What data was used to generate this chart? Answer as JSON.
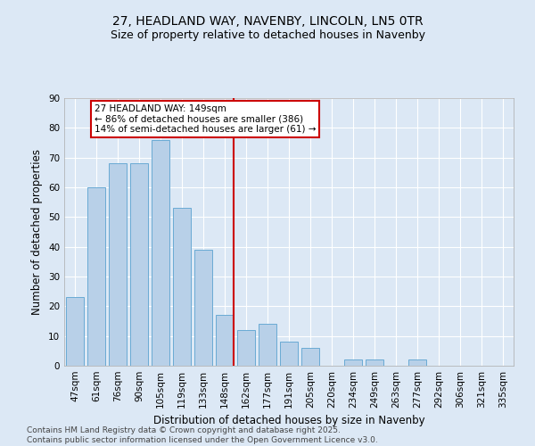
{
  "title": "27, HEADLAND WAY, NAVENBY, LINCOLN, LN5 0TR",
  "subtitle": "Size of property relative to detached houses in Navenby",
  "xlabel": "Distribution of detached houses by size in Navenby",
  "ylabel": "Number of detached properties",
  "categories": [
    "47sqm",
    "61sqm",
    "76sqm",
    "90sqm",
    "105sqm",
    "119sqm",
    "133sqm",
    "148sqm",
    "162sqm",
    "177sqm",
    "191sqm",
    "205sqm",
    "220sqm",
    "234sqm",
    "249sqm",
    "263sqm",
    "277sqm",
    "292sqm",
    "306sqm",
    "321sqm",
    "335sqm"
  ],
  "values": [
    23,
    60,
    68,
    68,
    76,
    53,
    39,
    17,
    12,
    14,
    8,
    6,
    0,
    2,
    2,
    0,
    2,
    0,
    0,
    0,
    0
  ],
  "bar_color": "#b8d0e8",
  "bar_edge_color": "#6aaad4",
  "reference_line_color": "#cc0000",
  "annotation_text": "27 HEADLAND WAY: 149sqm\n← 86% of detached houses are smaller (386)\n14% of semi-detached houses are larger (61) →",
  "annotation_box_color": "#cc0000",
  "annotation_fill": "#ffffff",
  "ylim": [
    0,
    90
  ],
  "yticks": [
    0,
    10,
    20,
    30,
    40,
    50,
    60,
    70,
    80,
    90
  ],
  "background_color": "#dce8f5",
  "title_fontsize": 10,
  "subtitle_fontsize": 9,
  "axis_label_fontsize": 8.5,
  "tick_fontsize": 7.5,
  "annotation_fontsize": 7.5,
  "footer_fontsize": 6.5,
  "footer": "Contains HM Land Registry data © Crown copyright and database right 2025.\nContains public sector information licensed under the Open Government Licence v3.0."
}
